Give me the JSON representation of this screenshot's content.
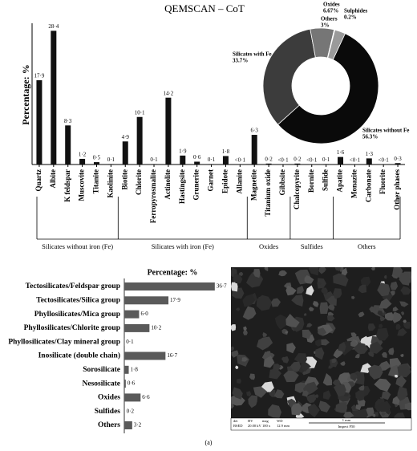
{
  "chart_data": [
    {
      "type": "bar",
      "title": "QEMSCAN – CoT",
      "y_label": "Percentage: %",
      "color": "#111111",
      "categories": [
        "Quartz",
        "Albite",
        "K feldspar",
        "Muscovite",
        "Titanite",
        "Kaolinite",
        "Biotite",
        "Chlorite",
        "Ferropyrosmalite",
        "Actinolite",
        "Hastingsite",
        "Grunerite",
        "Garnet",
        "Epidote",
        "Allanite",
        "Magnetite",
        "Titanium oxide",
        "Gibbsite",
        "Chalcopyrite",
        "Bornite",
        "Sulfide",
        "Apatite",
        "Monazite",
        "Carbonate",
        "Fluorite",
        "Other phases"
      ],
      "category_groups": [
        "Silicates without iron (Fe)",
        "Silicates without iron (Fe)",
        "Silicates without iron (Fe)",
        "Silicates without iron (Fe)",
        "Silicates without iron (Fe)",
        "Silicates without iron (Fe)",
        "Silicates with iron (Fe)",
        "Silicates with iron (Fe)",
        "Silicates with iron (Fe)",
        "Silicates with iron (Fe)",
        "Silicates with iron (Fe)",
        "Silicates with iron (Fe)",
        "Silicates with iron (Fe)",
        "Silicates with iron (Fe)",
        "Silicates with iron (Fe)",
        "Oxides",
        "Oxides",
        "Oxides",
        "Sulfides",
        "Sulfides",
        "Sulfides",
        "Others",
        "Others",
        "Others",
        "Others",
        "Others"
      ],
      "values": [
        17.9,
        28.4,
        8.3,
        1.2,
        0.5,
        0.1,
        4.9,
        10.1,
        0.1,
        14.2,
        1.9,
        0.6,
        0.1,
        1.8,
        0.05,
        6.3,
        0.2,
        0.05,
        0.2,
        0.05,
        0.1,
        1.6,
        0.05,
        1.3,
        0.05,
        0.3
      ],
      "value_labels": [
        "17·9",
        "28·4",
        "8·3",
        "1·2",
        "0·5",
        "0·1",
        "4·9",
        "10·1",
        "0·1",
        "14·2",
        "1·9",
        "0·6",
        "0·1",
        "1·8",
        "<0·1",
        "6·3",
        "0·2",
        "<0·1",
        "0·2",
        "<0·1",
        "0·1",
        "1·6",
        "<0·1",
        "1·3",
        "<0·1",
        "0·3"
      ],
      "ylim": [
        0,
        30
      ]
    },
    {
      "type": "donut",
      "categories": [
        "Silicates without Fe",
        "Silicates with Fe",
        "Oxides",
        "Sulphides",
        "Others"
      ],
      "values": [
        56.3,
        33.7,
        6.67,
        0.2,
        3
      ],
      "value_labels": [
        "56.3%",
        "33.7%",
        "6.67%",
        "0.2%",
        "3%"
      ],
      "colors": [
        "#0a0a0a",
        "#3c3c3c",
        "#767676",
        "#c8c8c8",
        "#9a9a9a"
      ]
    },
    {
      "type": "hbar",
      "title": "Percentage: %",
      "color": "#5a5a5a",
      "categories": [
        "Tectosilicates/Feldspar group",
        "Tectosilicates/Silica group",
        "Phyllosilicates/Mica group",
        "Phyllosilicates/Chlorite group",
        "Phyllosilicates/Clay mineral group",
        "Inosilicate (double chain)",
        "Sorosilicate",
        "Nesosilicate",
        "Oxides",
        "Sulfides",
        "Others"
      ],
      "values": [
        36.7,
        17.9,
        6.0,
        10.2,
        0.1,
        16.7,
        1.8,
        0.6,
        6.6,
        0.2,
        3.2
      ],
      "value_labels": [
        "36·7",
        "17·9",
        "6·0",
        "10·2",
        "0·1",
        "16·7",
        "1·8",
        "0·6",
        "6·6",
        "0·2",
        "3·2"
      ],
      "xlim": [
        0,
        40
      ]
    }
  ],
  "image": {
    "info": [
      {
        "header": "det",
        "value": "BSED"
      },
      {
        "header": "HV",
        "value": "20.00 kV"
      },
      {
        "header": "mag",
        "value": "100 x"
      },
      {
        "header": "WD",
        "value": "12.9 mm"
      }
    ],
    "scale": "1 mm",
    "instrument": "Inspect F50"
  },
  "caption": "(a)"
}
